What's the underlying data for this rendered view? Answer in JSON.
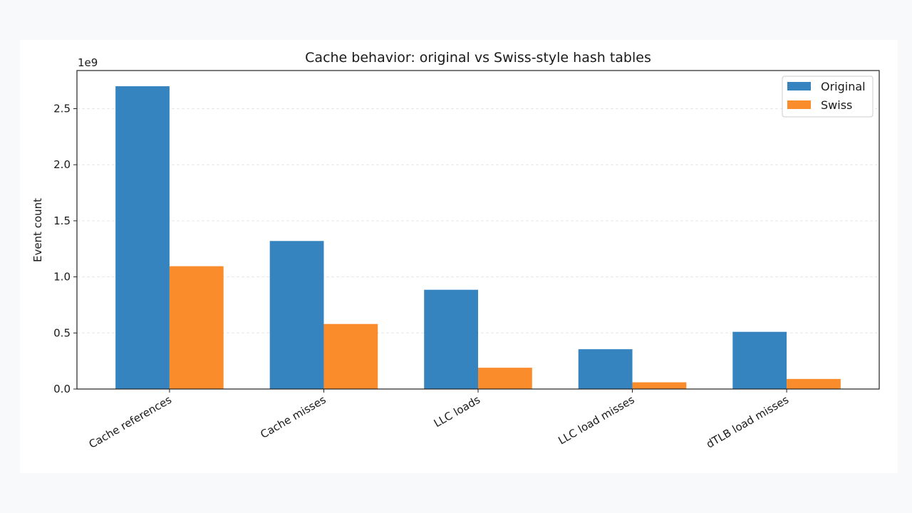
{
  "chart_data": {
    "type": "bar",
    "title": "Cache behavior: original vs Swiss-style hash tables",
    "xlabel": "",
    "ylabel": "Event count",
    "y_multiplier_label": "1e9",
    "categories": [
      "Cache references",
      "Cache misses",
      "LLC loads",
      "LLC load misses",
      "dTLB load misses"
    ],
    "series": [
      {
        "name": "Original",
        "color": "#3584bf",
        "values": [
          2.7,
          1.32,
          0.885,
          0.355,
          0.51
        ]
      },
      {
        "name": "Swiss",
        "color": "#fb8c2b",
        "values": [
          1.095,
          0.58,
          0.19,
          0.06,
          0.09
        ]
      }
    ],
    "ylim": [
      0,
      2.84
    ],
    "yticks": [
      0.0,
      0.5,
      1.0,
      1.5,
      2.0,
      2.5
    ],
    "ytick_labels": [
      "0.0",
      "0.5",
      "1.0",
      "1.5",
      "2.0",
      "2.5"
    ],
    "grid": "y-dashed",
    "legend_position": "top-right"
  }
}
